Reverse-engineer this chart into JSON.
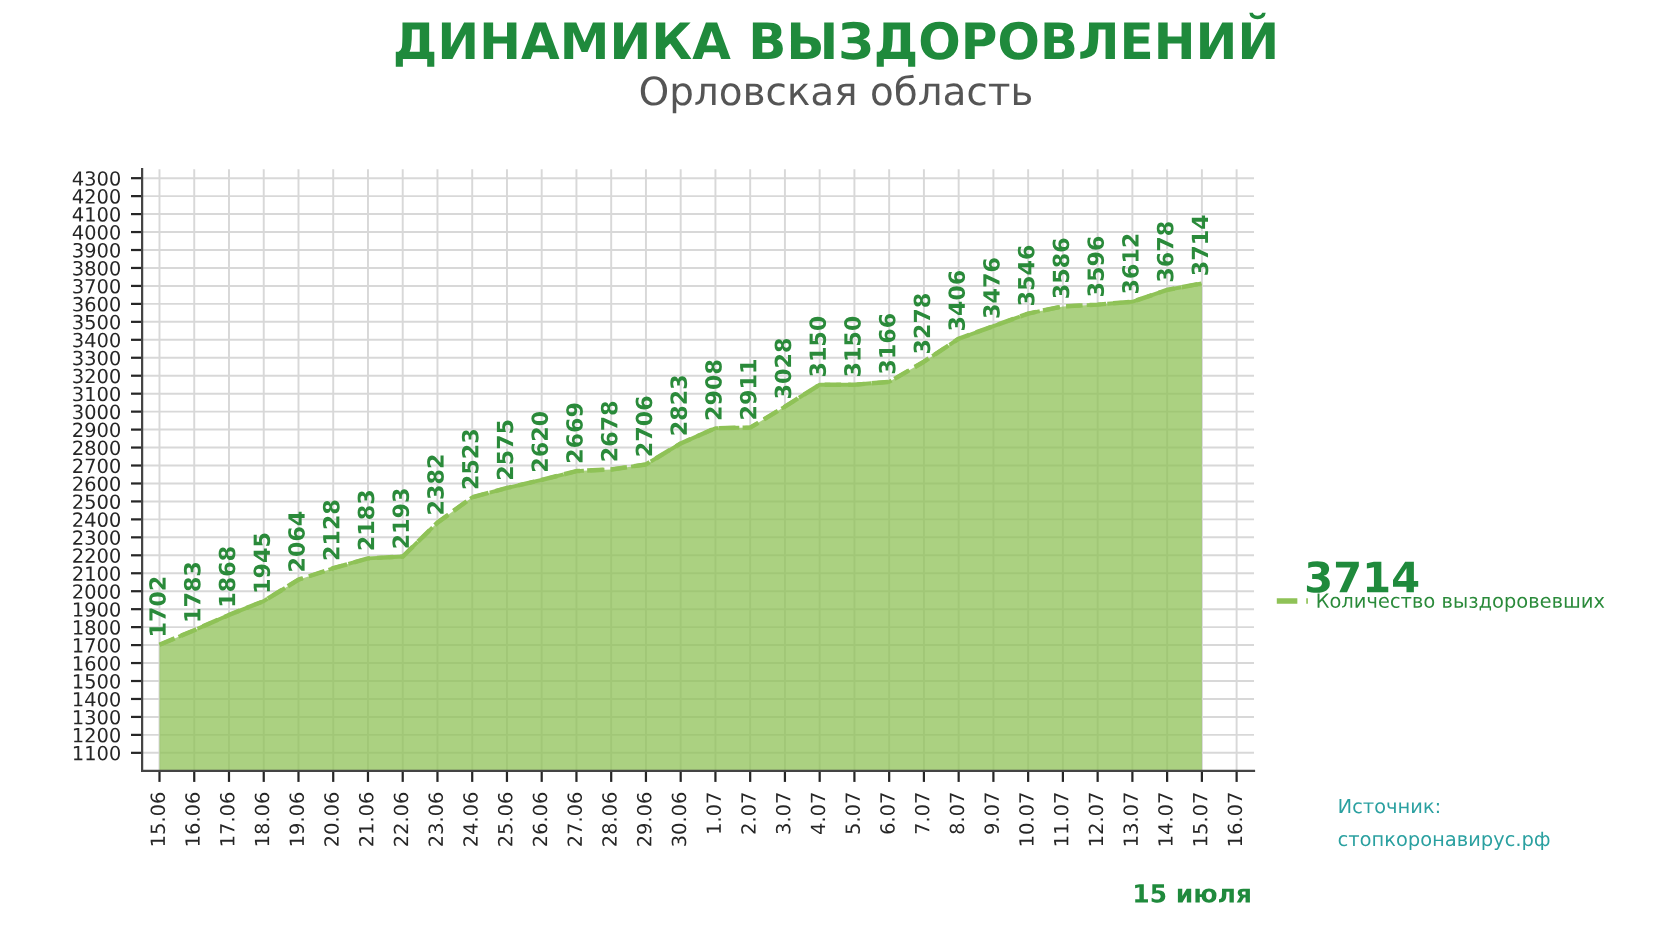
{
  "chart_data": {
    "type": "area",
    "title": "ДИНАМИКА ВЫЗДОРОВЛЕНИЙ",
    "subtitle": "Орловская область",
    "categories": [
      "15.06",
      "16.06",
      "17.06",
      "18.06",
      "19.06",
      "20.06",
      "21.06",
      "22.06",
      "23.06",
      "24.06",
      "25.06",
      "26.06",
      "27.06",
      "28.06",
      "29.06",
      "30.06",
      "1.07",
      "2.07",
      "3.07",
      "4.07",
      "5.07",
      "6.07",
      "7.07",
      "8.07",
      "9.07",
      "10.07",
      "11.07",
      "12.07",
      "13.07",
      "14.07",
      "15.07",
      "16.07"
    ],
    "series": [
      {
        "name": "Количество выздоровевших",
        "color": "#8fc257",
        "values": [
          1702,
          1783,
          1868,
          1945,
          2064,
          2128,
          2183,
          2193,
          2382,
          2523,
          2575,
          2620,
          2669,
          2678,
          2706,
          2823,
          2908,
          2911,
          3028,
          3150,
          3150,
          3166,
          3278,
          3406,
          3476,
          3546,
          3586,
          3596,
          3612,
          3678,
          3714,
          null
        ]
      }
    ],
    "ylim": [
      1000,
      4350
    ],
    "yticks": [
      1100,
      1200,
      1300,
      1400,
      1500,
      1600,
      1700,
      1800,
      1900,
      2000,
      2100,
      2200,
      2300,
      2400,
      2500,
      2600,
      2700,
      2800,
      2900,
      3000,
      3100,
      3200,
      3300,
      3400,
      3500,
      3600,
      3700,
      3800,
      3900,
      4000,
      4100,
      4200,
      4300
    ],
    "data_labels": true,
    "line_style": "dashed",
    "marker": "none",
    "grid": true,
    "legend": "right",
    "annotations": [
      "3714",
      "15 июля",
      "Источник:",
      "стопкоронавирус.рф"
    ]
  }
}
